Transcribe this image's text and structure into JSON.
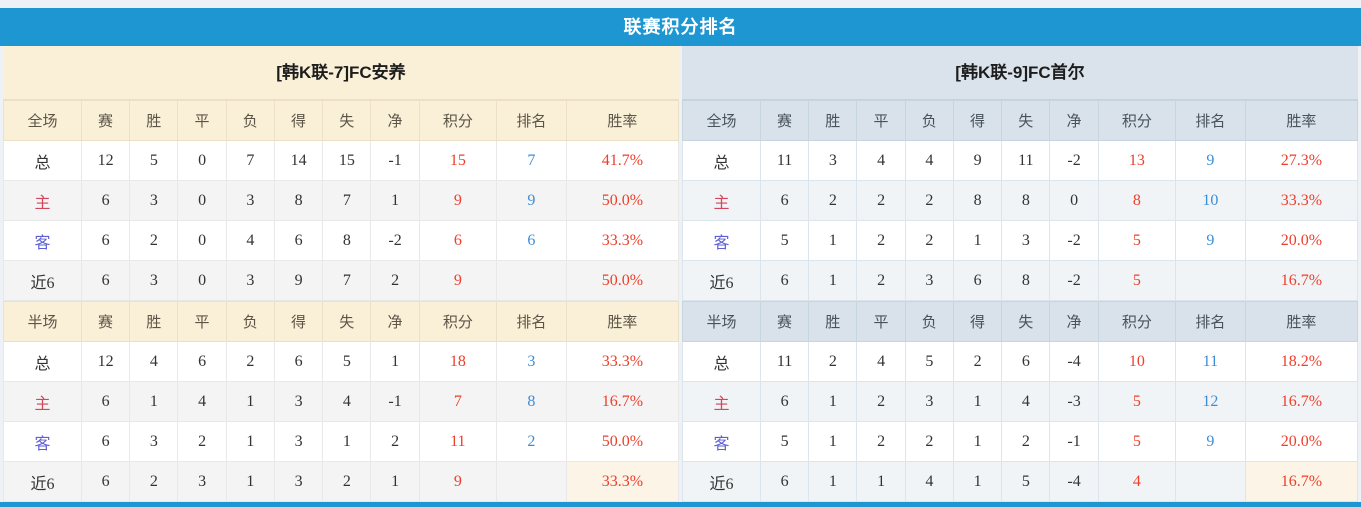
{
  "title": "联赛积分排名",
  "columns": {
    "full_scope_label": "全场",
    "half_scope_label": "半场",
    "stats": [
      "赛",
      "胜",
      "平",
      "负",
      "得",
      "失",
      "净",
      "积分",
      "排名",
      "胜率"
    ]
  },
  "colors": {
    "accent_blue": "#1e96d2",
    "left_panel_header_bg": "#faf0d8",
    "right_panel_header_bg": "#d9e2eb",
    "points_red": "#ee3e2c",
    "rate_red": "#ee3e2c",
    "rank_blue": "#3d8dd5",
    "home_row_label_red": "#d2455a",
    "away_row_label_blue": "#5f5fd3"
  },
  "panels": [
    {
      "team": "[韩K联-7]FC安养",
      "sections": {
        "full": {
          "rows": [
            {
              "label": "总",
              "stats": [
                "12",
                "5",
                "0",
                "7",
                "14",
                "15",
                "-1"
              ],
              "points": "15",
              "rank": "7",
              "rate": "41.7%"
            },
            {
              "label": "主",
              "stats": [
                "6",
                "3",
                "0",
                "3",
                "8",
                "7",
                "1"
              ],
              "points": "9",
              "rank": "9",
              "rate": "50.0%"
            },
            {
              "label": "客",
              "stats": [
                "6",
                "2",
                "0",
                "4",
                "6",
                "8",
                "-2"
              ],
              "points": "6",
              "rank": "6",
              "rate": "33.3%"
            },
            {
              "label": "近6",
              "stats": [
                "6",
                "3",
                "0",
                "3",
                "9",
                "7",
                "2"
              ],
              "points": "9",
              "rank": "",
              "rate": "50.0%"
            }
          ]
        },
        "half": {
          "rows": [
            {
              "label": "总",
              "stats": [
                "12",
                "4",
                "6",
                "2",
                "6",
                "5",
                "1"
              ],
              "points": "18",
              "rank": "3",
              "rate": "33.3%"
            },
            {
              "label": "主",
              "stats": [
                "6",
                "1",
                "4",
                "1",
                "3",
                "4",
                "-1"
              ],
              "points": "7",
              "rank": "8",
              "rate": "16.7%"
            },
            {
              "label": "客",
              "stats": [
                "6",
                "3",
                "2",
                "1",
                "3",
                "1",
                "2"
              ],
              "points": "11",
              "rank": "2",
              "rate": "50.0%"
            },
            {
              "label": "近6",
              "stats": [
                "6",
                "2",
                "3",
                "1",
                "3",
                "2",
                "1"
              ],
              "points": "9",
              "rank": "",
              "rate": "33.3%"
            }
          ]
        }
      }
    },
    {
      "team": "[韩K联-9]FC首尔",
      "sections": {
        "full": {
          "rows": [
            {
              "label": "总",
              "stats": [
                "11",
                "3",
                "4",
                "4",
                "9",
                "11",
                "-2"
              ],
              "points": "13",
              "rank": "9",
              "rate": "27.3%"
            },
            {
              "label": "主",
              "stats": [
                "6",
                "2",
                "2",
                "2",
                "8",
                "8",
                "0"
              ],
              "points": "8",
              "rank": "10",
              "rate": "33.3%"
            },
            {
              "label": "客",
              "stats": [
                "5",
                "1",
                "2",
                "2",
                "1",
                "3",
                "-2"
              ],
              "points": "5",
              "rank": "9",
              "rate": "20.0%"
            },
            {
              "label": "近6",
              "stats": [
                "6",
                "1",
                "2",
                "3",
                "6",
                "8",
                "-2"
              ],
              "points": "5",
              "rank": "",
              "rate": "16.7%"
            }
          ]
        },
        "half": {
          "rows": [
            {
              "label": "总",
              "stats": [
                "11",
                "2",
                "4",
                "5",
                "2",
                "6",
                "-4"
              ],
              "points": "10",
              "rank": "11",
              "rate": "18.2%"
            },
            {
              "label": "主",
              "stats": [
                "6",
                "1",
                "2",
                "3",
                "1",
                "4",
                "-3"
              ],
              "points": "5",
              "rank": "12",
              "rate": "16.7%"
            },
            {
              "label": "客",
              "stats": [
                "5",
                "1",
                "2",
                "2",
                "1",
                "2",
                "-1"
              ],
              "points": "5",
              "rank": "9",
              "rate": "20.0%"
            },
            {
              "label": "近6",
              "stats": [
                "6",
                "1",
                "1",
                "4",
                "1",
                "5",
                "-4"
              ],
              "points": "4",
              "rank": "",
              "rate": "16.7%"
            }
          ]
        }
      }
    }
  ]
}
